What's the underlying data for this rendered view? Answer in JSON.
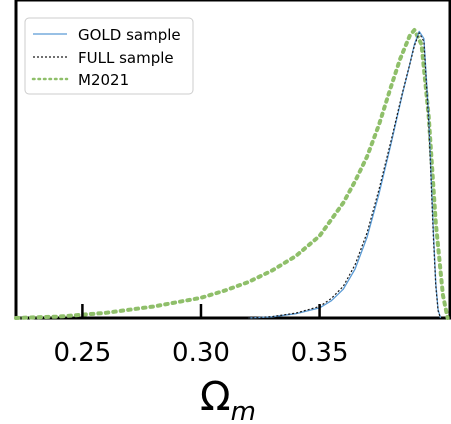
{
  "chart_data": {
    "type": "line",
    "xlabel_base": "Ω",
    "xlabel_sub": "m",
    "ylabel": "",
    "xlim": [
      0.222,
      0.405
    ],
    "ylim": [
      0,
      1.0
    ],
    "x_ticks": [
      {
        "value": 0.25,
        "label": "0.25"
      },
      {
        "value": 0.3,
        "label": "0.30"
      },
      {
        "value": 0.35,
        "label": "0.35"
      }
    ],
    "y_ticks_shown": false,
    "grid": false,
    "legend_position": "top-left",
    "series": [
      {
        "name": "GOLD sample",
        "color": "#5b9bd5",
        "style": "solid",
        "x": [
          0.32,
          0.33,
          0.34,
          0.35,
          0.355,
          0.36,
          0.365,
          0.37,
          0.375,
          0.38,
          0.385,
          0.388,
          0.39,
          0.392,
          0.394,
          0.396,
          0.398,
          0.399,
          0.4,
          0.401
        ],
        "y": [
          0.0,
          0.004,
          0.015,
          0.035,
          0.06,
          0.1,
          0.17,
          0.28,
          0.43,
          0.6,
          0.78,
          0.88,
          0.95,
          0.995,
          0.97,
          0.7,
          0.3,
          0.12,
          0.03,
          0.0
        ]
      },
      {
        "name": "FULL sample",
        "color": "#1a1a1a",
        "style": "dotted",
        "x": [
          0.32,
          0.33,
          0.34,
          0.35,
          0.355,
          0.36,
          0.365,
          0.37,
          0.375,
          0.38,
          0.385,
          0.388,
          0.39,
          0.392,
          0.394,
          0.396,
          0.398,
          0.399,
          0.4,
          0.401
        ],
        "y": [
          0.0,
          0.005,
          0.017,
          0.04,
          0.068,
          0.11,
          0.185,
          0.295,
          0.445,
          0.61,
          0.785,
          0.88,
          0.945,
          0.99,
          0.96,
          0.68,
          0.28,
          0.11,
          0.025,
          0.0
        ]
      },
      {
        "name": "M2021",
        "color": "#8fbf6a",
        "style": "dotted",
        "x": [
          0.222,
          0.24,
          0.26,
          0.28,
          0.3,
          0.31,
          0.32,
          0.33,
          0.34,
          0.35,
          0.36,
          0.365,
          0.37,
          0.375,
          0.38,
          0.384,
          0.388,
          0.39,
          0.393,
          0.396,
          0.399,
          0.402,
          0.404
        ],
        "y": [
          0.0,
          0.005,
          0.018,
          0.04,
          0.07,
          0.095,
          0.125,
          0.165,
          0.215,
          0.285,
          0.4,
          0.475,
          0.56,
          0.67,
          0.8,
          0.9,
          0.98,
          1.0,
          0.95,
          0.7,
          0.33,
          0.08,
          0.0
        ]
      }
    ]
  }
}
